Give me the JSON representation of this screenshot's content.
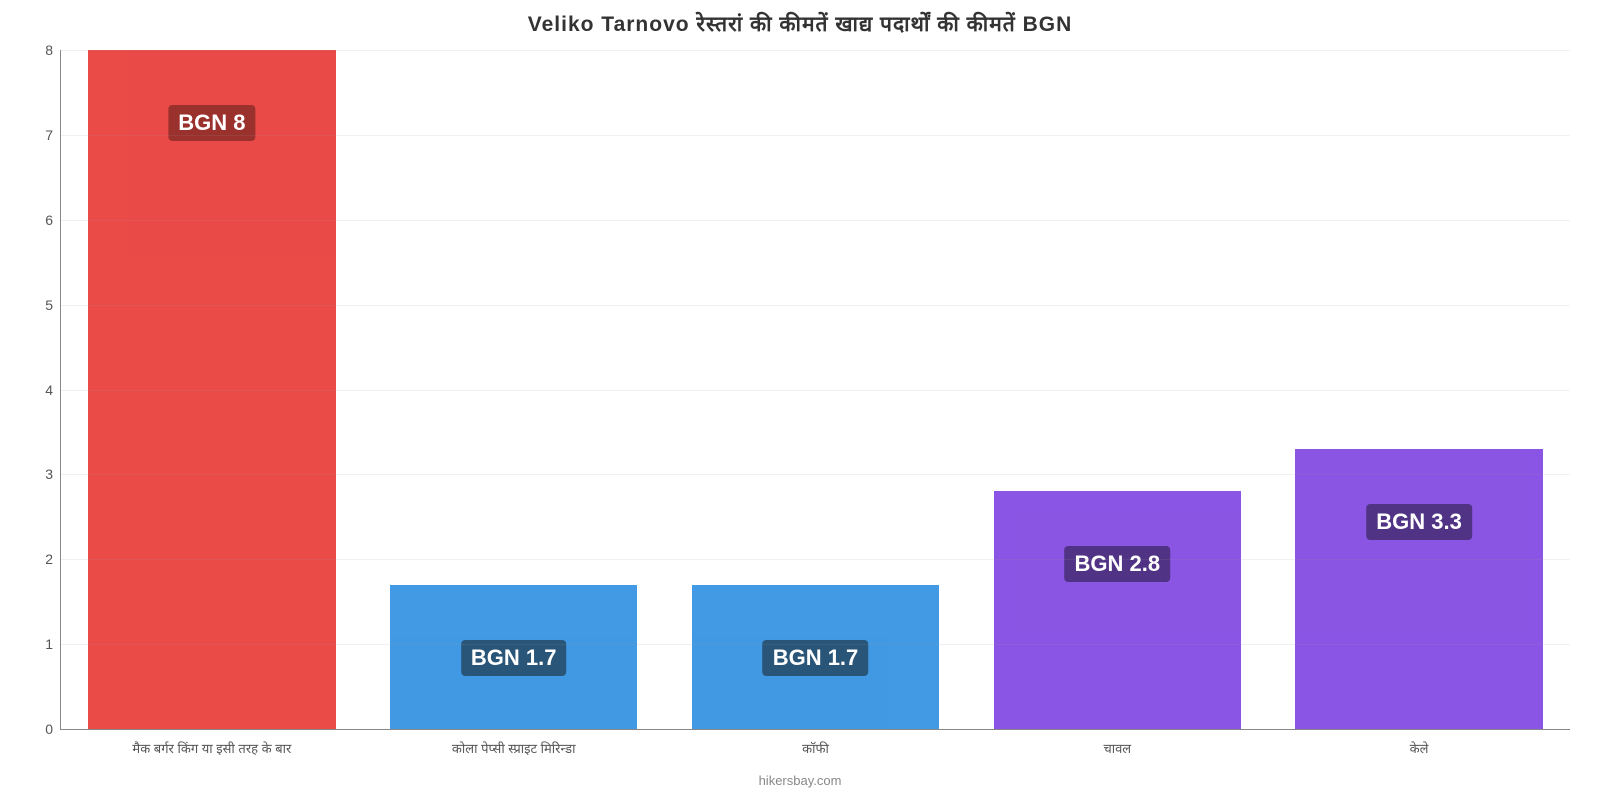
{
  "chart": {
    "type": "bar",
    "title": "Veliko Tarnovo रेस्तरां    की    कीमतें    खाद्य    पदार्थों    की    कीमतें    BGN",
    "title_fontsize": 21,
    "title_color": "#333333",
    "background_color": "#ffffff",
    "yaxis": {
      "min": 0,
      "max": 8,
      "ticks": [
        0,
        1,
        2,
        3,
        4,
        5,
        6,
        7,
        8
      ],
      "tick_fontsize": 14,
      "tick_color": "#555555",
      "grid_color": "#999999",
      "axis_line_color": "#888888"
    },
    "xaxis": {
      "tick_fontsize": 13,
      "tick_color": "#555555"
    },
    "bar_width": 0.82,
    "bars": [
      {
        "category": "मैक बर्गर किंग या इसी तरह के बार",
        "value": 8,
        "value_label": "BGN 8",
        "bar_color": "#e7322e",
        "badge_color": "#8d1510",
        "badge_fontsize": 22
      },
      {
        "category": "कोला पेप्सी स्प्राइट मिरिन्डा",
        "value": 1.7,
        "value_label": "BGN 1.7",
        "bar_color": "#288be0",
        "badge_color": "#0c3e66",
        "badge_fontsize": 22
      },
      {
        "category": "कॉफी",
        "value": 1.7,
        "value_label": "BGN 1.7",
        "bar_color": "#288be0",
        "badge_color": "#0c3e66",
        "badge_fontsize": 22
      },
      {
        "category": "चावल",
        "value": 2.8,
        "value_label": "BGN 2.8",
        "bar_color": "#7a3ee0",
        "badge_color": "#3a1875",
        "badge_fontsize": 22
      },
      {
        "category": "केले",
        "value": 3.3,
        "value_label": "BGN 3.3",
        "bar_color": "#7a3ee0",
        "badge_color": "#3a1875",
        "badge_fontsize": 22
      }
    ],
    "attribution": "hikersbay.com",
    "attribution_fontsize": 13,
    "attribution_color": "#888888"
  }
}
